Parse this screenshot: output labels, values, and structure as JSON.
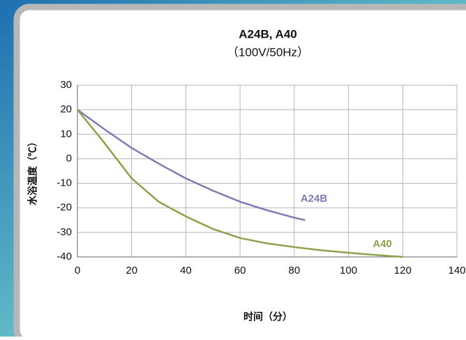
{
  "chart_data": {
    "type": "line",
    "title": "A24B, A40",
    "subtitle": "（100V/50Hz）",
    "xlabel": "时间（分）",
    "ylabel": "水浴温度（℃）",
    "xlim": [
      0,
      140
    ],
    "xticks": [
      0,
      20,
      40,
      60,
      80,
      100,
      120,
      140
    ],
    "ylim": [
      -40,
      30
    ],
    "yticks": [
      -40,
      -30,
      -20,
      -10,
      0,
      10,
      20,
      30
    ],
    "grid": true,
    "series": [
      {
        "name": "A24B",
        "color": "#7b7cb5",
        "x": [
          0,
          10,
          20,
          30,
          40,
          50,
          60,
          70,
          80,
          84
        ],
        "values": [
          20,
          12,
          4.4,
          -2,
          -8,
          -13,
          -17.5,
          -21,
          -24,
          -25
        ]
      },
      {
        "name": "A40",
        "color": "#8aa24a",
        "x": [
          0,
          10,
          20,
          30,
          40,
          50,
          60,
          70,
          80,
          90,
          100,
          110,
          120
        ],
        "values": [
          20,
          6.4,
          -8,
          -17.5,
          -23.5,
          -28.6,
          -32.3,
          -34.5,
          -36,
          -37.3,
          -38.3,
          -39.2,
          -40
        ]
      }
    ]
  }
}
